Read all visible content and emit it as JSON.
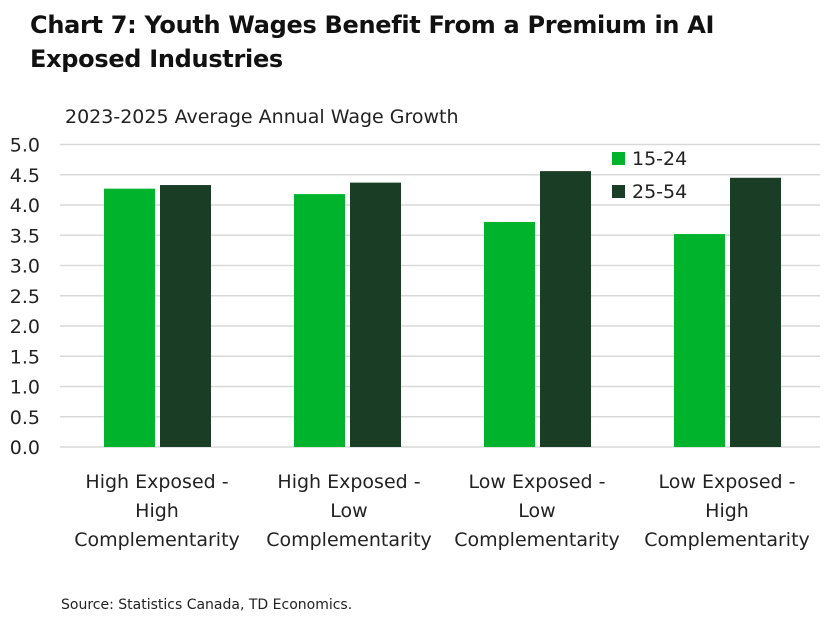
{
  "title": "Chart 7: Youth Wages Benefit From a Premium in AI Exposed Industries",
  "source": "Source: Statistics Canada, TD Economics.",
  "chart_data": {
    "type": "bar",
    "title": "Chart 7: Youth Wages Benefit From a Premium in AI Exposed Industries",
    "subtitle": "2023-2025 Average Annual Wage Growth",
    "categories": [
      [
        "High Exposed -",
        "High",
        "Complementarity"
      ],
      [
        "High Exposed -",
        "Low",
        "Complementarity"
      ],
      [
        "Low Exposed -",
        "Low",
        "Complementarity"
      ],
      [
        "Low Exposed -",
        "High",
        "Complementarity"
      ]
    ],
    "series": [
      {
        "name": "15-24",
        "color": "#00b32c",
        "values": [
          4.27,
          4.18,
          3.72,
          3.52
        ]
      },
      {
        "name": "25-54",
        "color": "#1a3d26",
        "values": [
          4.33,
          4.37,
          4.56,
          4.45
        ]
      }
    ],
    "ylim": [
      0,
      5
    ],
    "yticks": [
      "0.0",
      "0.5",
      "1.0",
      "1.5",
      "2.0",
      "2.5",
      "3.0",
      "3.5",
      "4.0",
      "4.5",
      "5.0"
    ],
    "grid": true,
    "legend": "top-right"
  }
}
